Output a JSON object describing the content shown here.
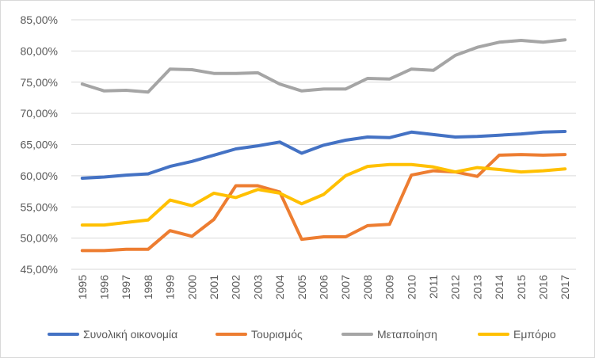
{
  "chart_data": {
    "type": "line",
    "title": "",
    "xlabel": "",
    "ylabel": "",
    "categories": [
      "1995",
      "1996",
      "1997",
      "1998",
      "1999",
      "2000",
      "2001",
      "2002",
      "2003",
      "2004",
      "2005",
      "2006",
      "2007",
      "2008",
      "2009",
      "2010",
      "2011",
      "2012",
      "2013",
      "2014",
      "2015",
      "2016",
      "2017"
    ],
    "ylim": [
      45,
      85
    ],
    "y_ticks": [
      45,
      50,
      55,
      60,
      65,
      70,
      75,
      80,
      85
    ],
    "y_tick_labels": [
      "45,00%",
      "50,00%",
      "55,00%",
      "60,00%",
      "65,00%",
      "70,00%",
      "75,00%",
      "80,00%",
      "85,00%"
    ],
    "grid": "horizontal",
    "legend_position": "bottom",
    "series": [
      {
        "name": "Συνολική οικονομία",
        "color": "#4472c4",
        "values": [
          59.6,
          59.8,
          60.1,
          60.3,
          61.5,
          62.3,
          63.3,
          64.3,
          64.8,
          65.4,
          63.6,
          64.9,
          65.7,
          66.2,
          66.1,
          67.0,
          66.6,
          66.2,
          66.3,
          66.5,
          66.7,
          67.0,
          67.1
        ]
      },
      {
        "name": "Τουρισμός",
        "color": "#ed7d31",
        "values": [
          48.0,
          48.0,
          48.2,
          48.2,
          51.2,
          50.3,
          53.0,
          58.4,
          58.4,
          57.4,
          49.8,
          50.2,
          50.2,
          52.0,
          52.2,
          60.1,
          60.8,
          60.6,
          59.9,
          63.3,
          63.4,
          63.3,
          63.4
        ]
      },
      {
        "name": "Μεταποίηση",
        "color": "#a5a5a5",
        "values": [
          74.7,
          73.6,
          73.7,
          73.4,
          77.1,
          77.0,
          76.4,
          76.4,
          76.5,
          74.7,
          73.6,
          73.9,
          73.9,
          75.6,
          75.5,
          77.1,
          76.9,
          79.3,
          80.6,
          81.4,
          81.7,
          81.4,
          81.8
        ]
      },
      {
        "name": "Εμπόριο",
        "color": "#ffc000",
        "values": [
          52.1,
          52.1,
          52.5,
          52.9,
          56.1,
          55.2,
          57.2,
          56.5,
          57.8,
          57.2,
          55.5,
          57.0,
          60.0,
          61.5,
          61.8,
          61.8,
          61.4,
          60.6,
          61.3,
          61.0,
          60.6,
          60.8,
          61.1
        ]
      }
    ]
  },
  "style": {
    "grid_color": "#d9d9d9",
    "text_color": "#595959"
  }
}
